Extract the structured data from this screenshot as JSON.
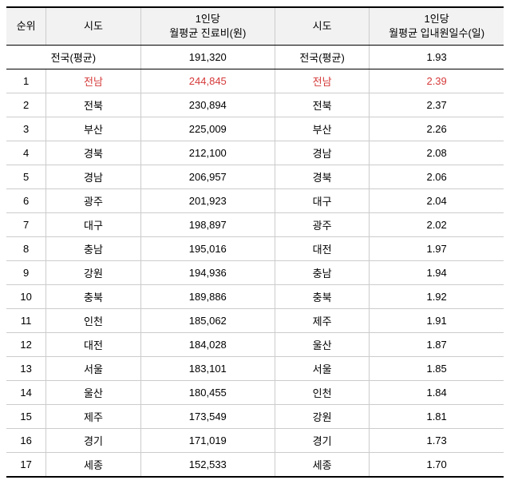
{
  "headers": {
    "rank": "순위",
    "sido1": "시도",
    "cost_label": "1인당\n월평균 진료비(원)",
    "sido2": "시도",
    "days_label": "1인당\n월평균 입내원일수(일)"
  },
  "avg_row": {
    "label": "전국(평균)",
    "cost": "191,320",
    "days": "1.93"
  },
  "rows": [
    {
      "rank": "1",
      "sido_cost": "전남",
      "cost": "244,845",
      "sido_days": "전남",
      "days": "2.39",
      "highlight": true
    },
    {
      "rank": "2",
      "sido_cost": "전북",
      "cost": "230,894",
      "sido_days": "전북",
      "days": "2.37",
      "highlight": false
    },
    {
      "rank": "3",
      "sido_cost": "부산",
      "cost": "225,009",
      "sido_days": "부산",
      "days": "2.26",
      "highlight": false
    },
    {
      "rank": "4",
      "sido_cost": "경북",
      "cost": "212,100",
      "sido_days": "경남",
      "days": "2.08",
      "highlight": false
    },
    {
      "rank": "5",
      "sido_cost": "경남",
      "cost": "206,957",
      "sido_days": "경북",
      "days": "2.06",
      "highlight": false
    },
    {
      "rank": "6",
      "sido_cost": "광주",
      "cost": "201,923",
      "sido_days": "대구",
      "days": "2.04",
      "highlight": false
    },
    {
      "rank": "7",
      "sido_cost": "대구",
      "cost": "198,897",
      "sido_days": "광주",
      "days": "2.02",
      "highlight": false
    },
    {
      "rank": "8",
      "sido_cost": "충남",
      "cost": "195,016",
      "sido_days": "대전",
      "days": "1.97",
      "highlight": false
    },
    {
      "rank": "9",
      "sido_cost": "강원",
      "cost": "194,936",
      "sido_days": "충남",
      "days": "1.94",
      "highlight": false
    },
    {
      "rank": "10",
      "sido_cost": "충북",
      "cost": "189,886",
      "sido_days": "충북",
      "days": "1.92",
      "highlight": false
    },
    {
      "rank": "11",
      "sido_cost": "인천",
      "cost": "185,062",
      "sido_days": "제주",
      "days": "1.91",
      "highlight": false
    },
    {
      "rank": "12",
      "sido_cost": "대전",
      "cost": "184,028",
      "sido_days": "울산",
      "days": "1.87",
      "highlight": false
    },
    {
      "rank": "13",
      "sido_cost": "서울",
      "cost": "183,101",
      "sido_days": "서울",
      "days": "1.85",
      "highlight": false
    },
    {
      "rank": "14",
      "sido_cost": "울산",
      "cost": "180,455",
      "sido_days": "인천",
      "days": "1.84",
      "highlight": false
    },
    {
      "rank": "15",
      "sido_cost": "제주",
      "cost": "173,549",
      "sido_days": "강원",
      "days": "1.81",
      "highlight": false
    },
    {
      "rank": "16",
      "sido_cost": "경기",
      "cost": "171,019",
      "sido_days": "경기",
      "days": "1.73",
      "highlight": false
    },
    {
      "rank": "17",
      "sido_cost": "세종",
      "cost": "152,533",
      "sido_days": "세종",
      "days": "1.70",
      "highlight": false
    }
  ],
  "colors": {
    "highlight": "#d63a3a",
    "header_bg": "#f2f2f2",
    "border": "#cccccc",
    "border_strong": "#000000"
  }
}
